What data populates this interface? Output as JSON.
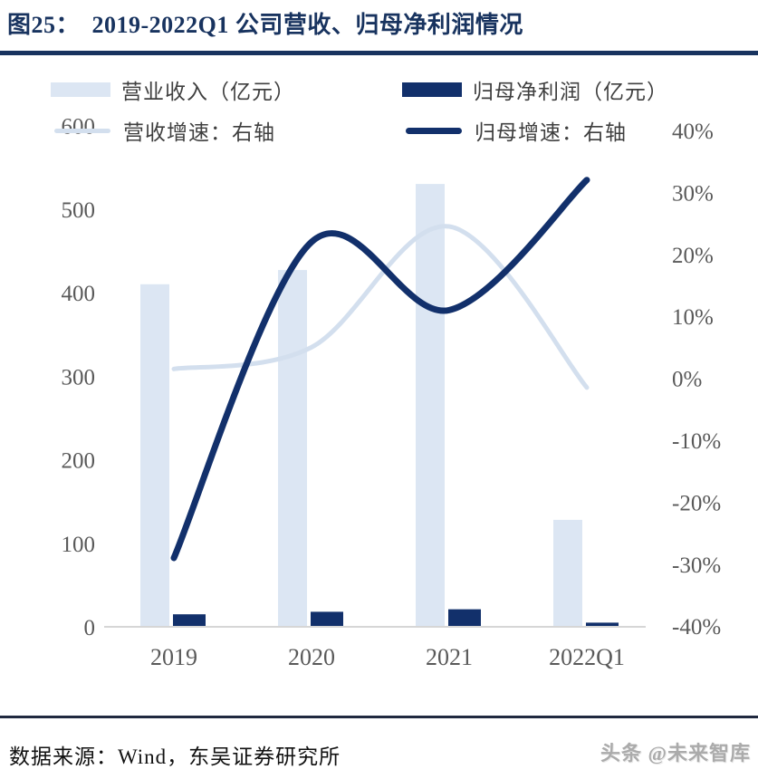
{
  "page": {
    "title": "图25：　2019-2022Q1 公司营收、归母净利润情况",
    "source_line": "数据来源：Wind，东吴证券研究所",
    "watermark": "头条 @未来智库"
  },
  "legend": {
    "revenue_bar": "营业收入（亿元）",
    "profit_bar": "归母净利润（亿元）",
    "revenue_line": "营收增速：右轴",
    "profit_line": "归母增速：右轴"
  },
  "colors": {
    "light_blue_bar": "#dce6f3",
    "light_blue_line": "#d3dfee",
    "dark_navy": "#12306b",
    "title_navy": "#18335f",
    "axis_text": "#595959",
    "axis_line": "#d6d6d6"
  },
  "chart_data": {
    "type": "bar",
    "subtype": "combo-bar-line",
    "title": "2019-2022Q1 公司营收、归母净利润情况",
    "categories": [
      "2019",
      "2020",
      "2021",
      "2022Q1"
    ],
    "series": [
      {
        "name": "营业收入（亿元）",
        "type": "bar",
        "axis": "left",
        "color": "#dce6f3",
        "values": [
          410,
          427,
          530,
          128
        ]
      },
      {
        "name": "归母净利润（亿元）",
        "type": "bar",
        "axis": "left",
        "color": "#12306b",
        "values": [
          15,
          18,
          21,
          5
        ]
      },
      {
        "name": "营收增速：右轴",
        "type": "line",
        "axis": "right",
        "color": "#d3dfee",
        "values_pct": [
          1.5,
          5,
          24.5,
          -1.5
        ]
      },
      {
        "name": "归母增速：右轴",
        "type": "line",
        "axis": "right",
        "color": "#12306b",
        "values_pct": [
          -29,
          22,
          11,
          32
        ]
      }
    ],
    "left_axis": {
      "label": "亿元",
      "min": 0,
      "max": 600,
      "ticks": [
        600,
        500,
        400,
        300,
        200,
        100,
        0
      ]
    },
    "right_axis": {
      "label": "%",
      "min": -40,
      "max": 40,
      "ticks": [
        "40%",
        "30%",
        "20%",
        "10%",
        "0%",
        "-10%",
        "-20%",
        "-30%",
        "-40%"
      ]
    },
    "grid": false,
    "legend_position": "top",
    "smooth_lines": true
  }
}
